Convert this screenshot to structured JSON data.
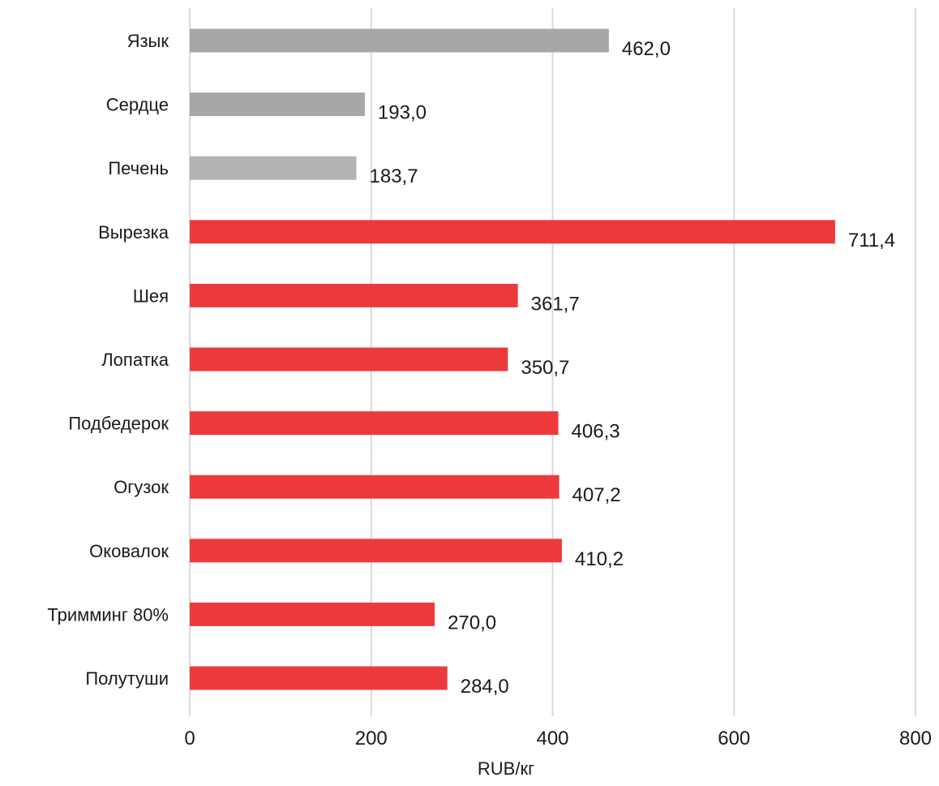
{
  "chart_data": {
    "type": "bar",
    "orientation": "horizontal",
    "categories": [
      "Язык",
      "Сердце",
      "Печень",
      "Вырезка",
      "Шея",
      "Лопатка",
      "Подбедерок",
      "Огузок",
      "Оковалок",
      "Тримминг 80%",
      "Полутуши"
    ],
    "values": [
      462.0,
      193.0,
      183.7,
      711.4,
      361.7,
      350.7,
      406.3,
      407.2,
      410.2,
      270.0,
      284.0
    ],
    "value_labels": [
      "462,0",
      "193,0",
      "183,7",
      "711,4",
      "361,7",
      "350,7",
      "406,3",
      "407,2",
      "410,2",
      "270,0",
      "284,0"
    ],
    "bar_colors": [
      "#a6a7a9",
      "#a6a7a9",
      "#b3b3b3",
      "#ec3a3c",
      "#ec3a3c",
      "#ec3a3c",
      "#ec3a3c",
      "#ec3a3c",
      "#ec3a3c",
      "#ec3a3c",
      "#ec3a3c"
    ],
    "xlabel": "RUB/кг",
    "ylabel": "",
    "title": "",
    "xlim": [
      0,
      800
    ],
    "x_ticks": [
      0,
      200,
      400,
      600,
      800
    ],
    "x_tick_labels": [
      "0",
      "200",
      "400",
      "600",
      "800"
    ],
    "grid": "vertical",
    "legend": "none"
  }
}
